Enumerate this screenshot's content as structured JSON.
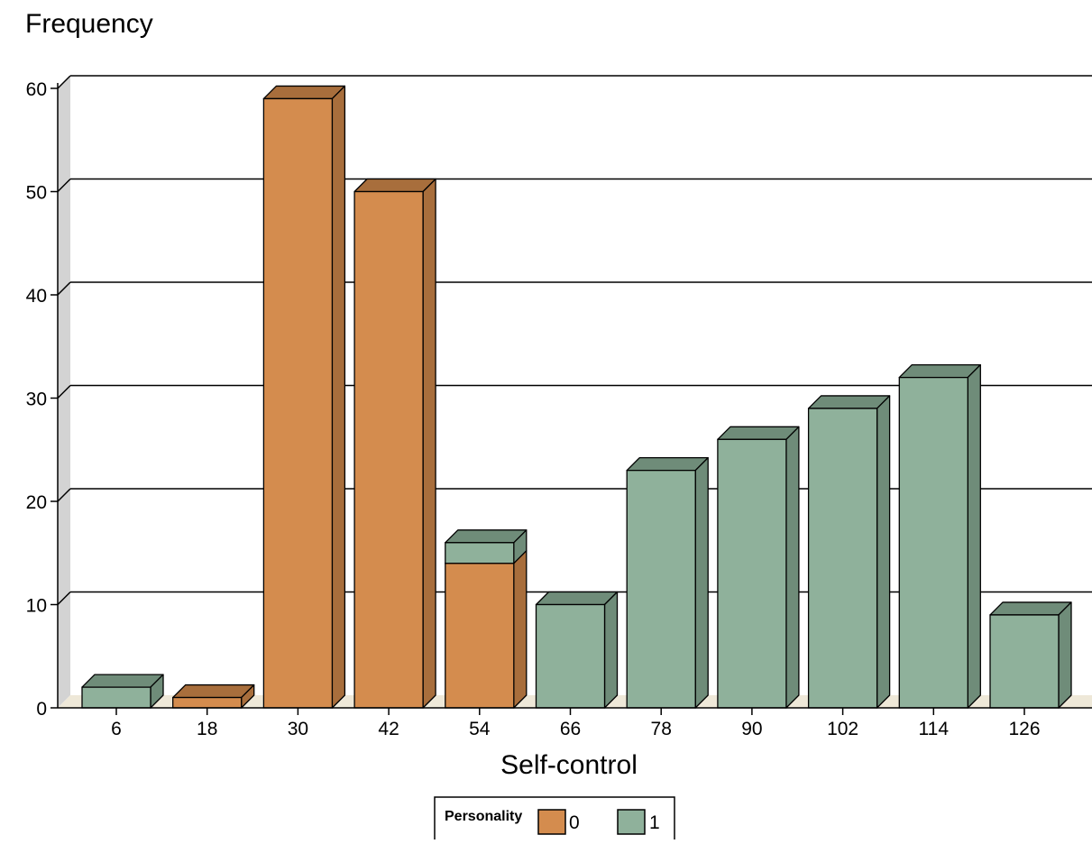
{
  "chart_data": {
    "type": "bar",
    "stacked": true,
    "style": "3d",
    "ylabel": "Frequency",
    "xlabel": "Self-control",
    "categories": [
      "6",
      "18",
      "30",
      "42",
      "54",
      "66",
      "78",
      "90",
      "102",
      "114",
      "126"
    ],
    "series": [
      {
        "name": "0",
        "color": "#d48c4e",
        "side_color": "#a86e3c",
        "values": [
          0,
          1,
          59,
          50,
          14,
          0,
          0,
          0,
          0,
          0,
          0
        ]
      },
      {
        "name": "1",
        "color": "#8fb19b",
        "side_color": "#6f8c79",
        "values": [
          2,
          0,
          0,
          0,
          2,
          10,
          23,
          26,
          29,
          32,
          9
        ]
      }
    ],
    "ylim": [
      0,
      60
    ],
    "yticks": [
      0,
      10,
      20,
      30,
      40,
      50,
      60
    ],
    "grid": true,
    "legend": {
      "title": "Personality",
      "position": "bottom-center"
    }
  }
}
